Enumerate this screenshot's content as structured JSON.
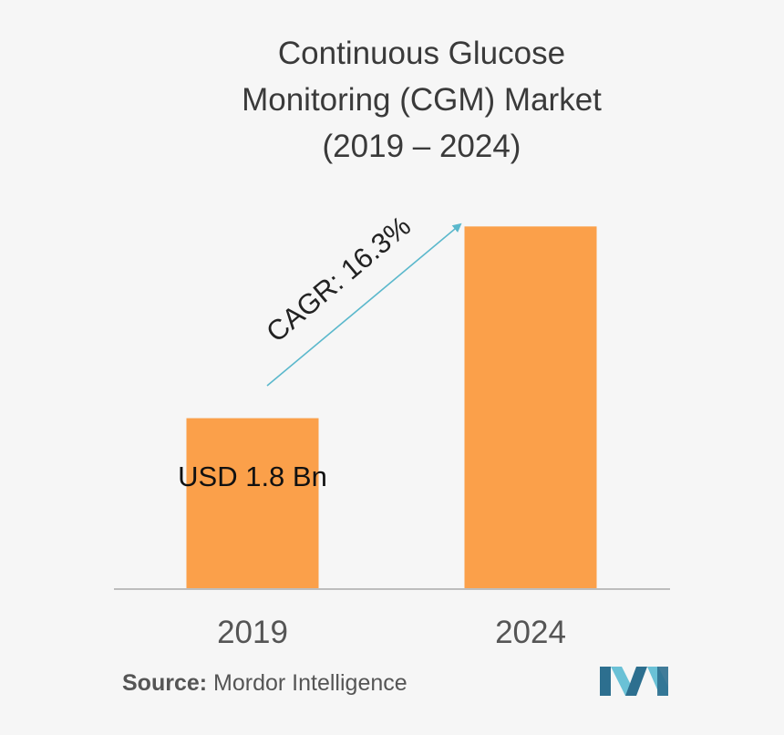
{
  "title": {
    "line1": "Continuous Glucose",
    "line2": "Monitoring (CGM) Market",
    "line3": "(2019 – 2024)"
  },
  "chart_data": {
    "type": "bar",
    "categories": [
      "2019",
      "2024"
    ],
    "values": [
      1.8,
      3.83
    ],
    "value_labels": [
      "USD 1.8 Bn",
      ""
    ],
    "annotation": "CAGR: 16.3%",
    "xlabel": "",
    "ylabel": "",
    "ylim": [
      0,
      4.2
    ],
    "grid": false,
    "legend": "none",
    "colors": {
      "bar": "#fba04a",
      "arrow": "#5bb8cc",
      "axis": "#bdbdbd",
      "text": "#3a3a3a"
    }
  },
  "source": {
    "label": "Source:",
    "text": "Mordor Intelligence"
  },
  "logo": {
    "icon": "mordor-intelligence-logo-icon",
    "colors": [
      "#2d6f8f",
      "#6ac1d6"
    ]
  }
}
